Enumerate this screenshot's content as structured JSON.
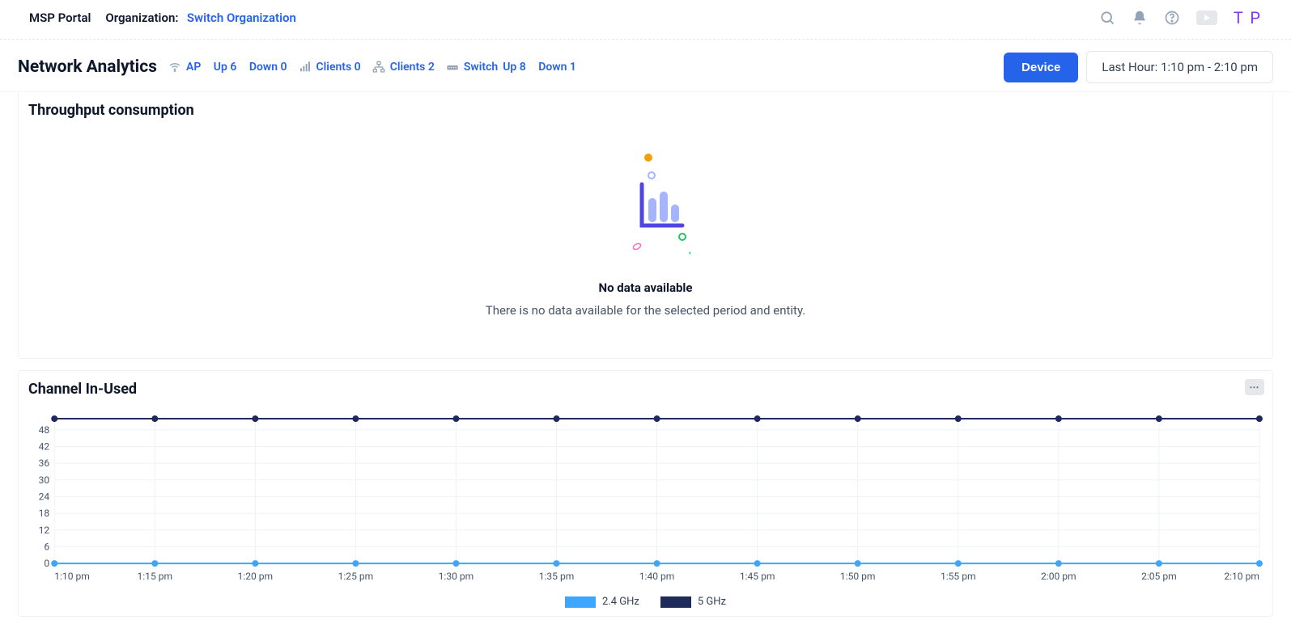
{
  "topbar": {
    "portal": "MSP Portal",
    "orgLabel": "Organization:",
    "switchOrg": "Switch Organization",
    "avatar": "T P"
  },
  "header": {
    "title": "Network Analytics",
    "stats": {
      "ap": {
        "label": "AP",
        "up": "Up 6",
        "down": "Down 0"
      },
      "clients1": {
        "label": "Clients 0"
      },
      "clients2": {
        "label": "Clients 2"
      },
      "switch": {
        "label": "Switch",
        "up": "Up 8",
        "down": "Down 1"
      }
    },
    "deviceBtn": "Device",
    "timeRange": "Last Hour: 1:10 pm - 2:10 pm"
  },
  "cards": {
    "throughput": {
      "title": "Throughput consumption",
      "emptyTitle": "No data available",
      "emptySub": "There is no data available for the selected period and entity."
    },
    "channel": {
      "title": "Channel In-Used",
      "chart": {
        "type": "line",
        "categories": [
          "1:10 pm",
          "1:15 pm",
          "1:20 pm",
          "1:25 pm",
          "1:30 pm",
          "1:35 pm",
          "1:40 pm",
          "1:45 pm",
          "1:50 pm",
          "1:55 pm",
          "2:00 pm",
          "2:05 pm",
          "2:10 pm"
        ],
        "yticks": [
          0,
          6,
          12,
          18,
          24,
          30,
          36,
          42,
          48
        ],
        "ylim": [
          0,
          52
        ],
        "series": [
          {
            "name": "2.4 GHz",
            "color": "#3ea6ff",
            "values": [
              0,
              0,
              0,
              0,
              0,
              0,
              0,
              0,
              0,
              0,
              0,
              0,
              0
            ]
          },
          {
            "name": "5 GHz",
            "color": "#1e2a5a",
            "values": [
              52,
              52,
              52,
              52,
              52,
              52,
              52,
              52,
              52,
              52,
              52,
              52,
              52
            ]
          }
        ],
        "grid_color": "#eef2f7",
        "axis_text_color": "#475569",
        "marker_radius": 4,
        "line_width": 2
      }
    }
  }
}
